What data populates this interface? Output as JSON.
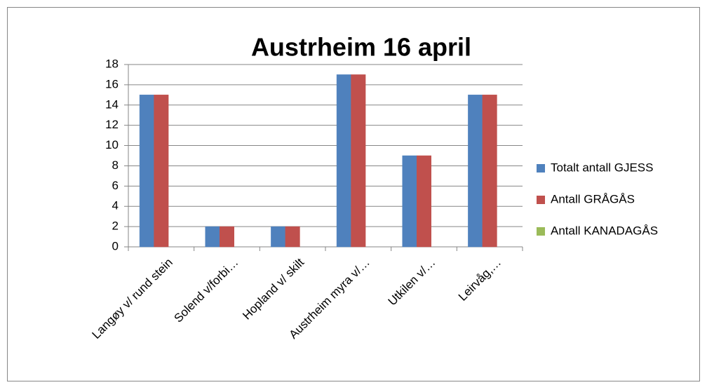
{
  "chart_data": {
    "type": "bar",
    "title": "Austrheim 16 april",
    "categories": [
      "Langøy v/ rund stein",
      "Solend v/forbi…",
      "Hopland v/ skilt",
      "Austrheim myra v/…",
      "Utkilen v/…",
      "Leirvåg,…"
    ],
    "series": [
      {
        "name": "Totalt antall GJESS",
        "color": "#4f81bd",
        "values": [
          15,
          2,
          2,
          17,
          9,
          15
        ]
      },
      {
        "name": "Antall GRÅGÅS",
        "color": "#c0504d",
        "values": [
          15,
          2,
          2,
          17,
          9,
          15
        ]
      },
      {
        "name": "Antall KANADAGÅS",
        "color": "#9bbb59",
        "values": [
          0,
          0,
          0,
          0,
          0,
          0
        ]
      }
    ],
    "ylim": [
      0,
      18
    ],
    "yticks": [
      0,
      2,
      4,
      6,
      8,
      10,
      12,
      14,
      16,
      18
    ],
    "grid": true,
    "legend": "right"
  }
}
